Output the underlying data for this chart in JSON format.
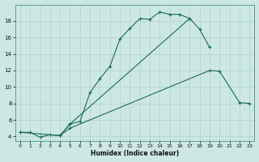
{
  "xlabel": "Humidex (Indice chaleur)",
  "bg_color": "#cde8e2",
  "grid_color": "#b0d0c8",
  "line_color": "#1a6b5a",
  "ylim": [
    3.5,
    20.0
  ],
  "xlim": [
    -0.5,
    23.5
  ],
  "yticks": [
    4,
    6,
    8,
    10,
    12,
    14,
    16,
    18
  ],
  "xticks": [
    0,
    1,
    2,
    3,
    4,
    5,
    6,
    7,
    8,
    9,
    10,
    11,
    12,
    13,
    14,
    15,
    16,
    17,
    18,
    19,
    20,
    21,
    22,
    23
  ],
  "curve1_x": [
    0,
    1,
    2,
    3,
    4,
    5,
    6,
    7,
    8,
    9,
    10,
    11,
    12,
    13,
    14,
    15,
    16,
    17
  ],
  "curve1_y": [
    4.5,
    4.5,
    3.9,
    4.2,
    4.1,
    5.5,
    5.8,
    9.3,
    11.0,
    12.5,
    15.8,
    17.1,
    18.3,
    18.2,
    19.1,
    18.8,
    18.8,
    18.3
  ],
  "curve2_x": [
    4,
    5,
    17,
    18,
    19
  ],
  "curve2_y": [
    4.1,
    5.5,
    18.3,
    17.0,
    14.8
  ],
  "curve3_x": [
    0,
    4,
    5,
    19,
    20,
    22,
    23
  ],
  "curve3_y": [
    4.5,
    4.1,
    5.0,
    12.0,
    11.9,
    8.1,
    8.0
  ]
}
